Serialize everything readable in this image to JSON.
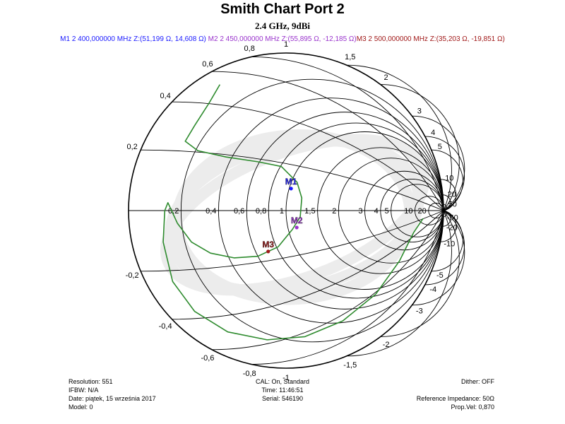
{
  "chart_data": {
    "type": "smith",
    "title": "Smith Chart Port 2",
    "subtitle": "2.4 GHz, 9dBi",
    "reference_impedance_ohm": 50,
    "resistance_labels": [
      "0,2",
      "0,4",
      "0,6",
      "0,8",
      "1",
      "1,5",
      "2",
      "3",
      "4",
      "5",
      "10",
      "20"
    ],
    "reactance_labels_positive": [
      "0,2",
      "0,4",
      "0,6",
      "0,8",
      "1",
      "1,5",
      "2",
      "3",
      "4",
      "5",
      "10",
      "20",
      "50"
    ],
    "reactance_labels_negative": [
      "-0,2",
      "-0,4",
      "-0,6",
      "-0,8",
      "-1",
      "-1,5",
      "-2",
      "-3",
      "-4",
      "-5",
      "-10",
      "-20",
      "-50"
    ],
    "markers": [
      {
        "name": "M1",
        "text": "M1  2 400,000000 MHz  Z:(51,199 Ω, 14,608 Ω)",
        "freq_mhz": 2400,
        "r_ohm": 51.199,
        "x_ohm": 14.608,
        "color": "#1a1aff"
      },
      {
        "name": "M2",
        "text": "M2  2 450,000000 MHz  Z:(55,895 Ω, -12,185 Ω)",
        "freq_mhz": 2450,
        "r_ohm": 55.895,
        "x_ohm": -12.185,
        "color": "#9933cc"
      },
      {
        "name": "M3",
        "text": "M3  2 500,000000 MHz  Z:(35,203 Ω, -19,851 Ω)",
        "freq_mhz": 2500,
        "r_ohm": 35.203,
        "x_ohm": -19.851,
        "color": "#a01818"
      }
    ],
    "trace": {
      "color": "#2e8b2e",
      "gamma_points": [
        [
          -0.42,
          0.8
        ],
        [
          -0.49,
          0.68
        ],
        [
          -0.58,
          0.54
        ],
        [
          -0.64,
          0.44
        ],
        [
          -0.56,
          0.38
        ],
        [
          -0.38,
          0.34
        ],
        [
          -0.18,
          0.31
        ],
        [
          -0.03,
          0.28
        ],
        [
          0.07,
          0.18
        ],
        [
          0.1,
          0.08
        ],
        [
          0.09,
          -0.04
        ],
        [
          0.04,
          -0.12
        ],
        [
          -0.05,
          -0.23
        ],
        [
          -0.18,
          -0.29
        ],
        [
          -0.33,
          -0.3
        ],
        [
          -0.48,
          -0.27
        ],
        [
          -0.6,
          -0.2
        ],
        [
          -0.69,
          -0.08
        ],
        [
          -0.75,
          0.05
        ],
        [
          -0.77,
          0.0
        ],
        [
          -0.78,
          -0.2
        ],
        [
          -0.72,
          -0.45
        ],
        [
          -0.58,
          -0.64
        ],
        [
          -0.37,
          -0.77
        ],
        [
          -0.12,
          -0.82
        ],
        [
          0.12,
          -0.8
        ],
        [
          0.36,
          -0.7
        ],
        [
          0.57,
          -0.53
        ],
        [
          0.72,
          -0.32
        ],
        [
          0.81,
          -0.14
        ],
        [
          0.87,
          -0.05
        ]
      ]
    }
  },
  "info": {
    "left": [
      "Resolution: 551",
      "IFBW: N/A",
      "Date: piątek, 15 września 2017",
      "Model: 0"
    ],
    "center": [
      "CAL: On, Standard",
      "Time: 11:46:51",
      "Serial: 546190"
    ],
    "right": [
      "Dither:  OFF",
      "",
      "Reference Impedance: 50Ω",
      "Prop.Vel: 0,870"
    ]
  }
}
